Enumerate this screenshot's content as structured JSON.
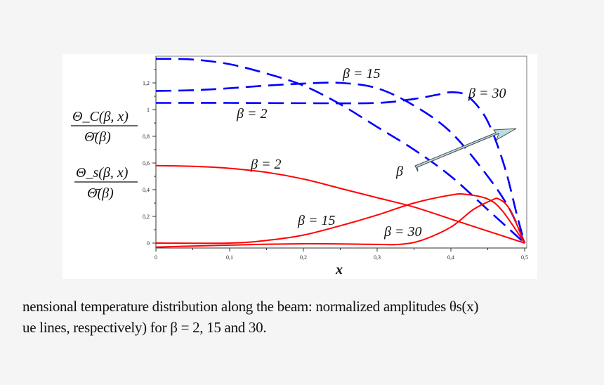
{
  "chart_data": {
    "type": "line",
    "xlabel": "x",
    "ylabel_top": {
      "numerator": "Θ_C(β, x)",
      "denominator": "Θ̄(β)"
    },
    "ylabel_bottom": {
      "numerator": "Θ_s(β, x)",
      "denominator": "Θ̄(β)"
    },
    "xlim": [
      0,
      0.5
    ],
    "ylim": [
      -0.035,
      1.39
    ],
    "x_ticks": [
      "0",
      "0,1",
      "0,2",
      "0,3",
      "0,4",
      "0,5"
    ],
    "x_tick_values": [
      0,
      0.1,
      0.2,
      0.3,
      0.4,
      0.5
    ],
    "y_ticks": [
      "0",
      "0,2",
      "0,4",
      "0,6",
      "0,8",
      "1",
      "1,2"
    ],
    "y_tick_values": [
      0,
      0.2,
      0.4,
      0.6,
      0.8,
      1.0,
      1.2
    ],
    "grid": false,
    "series": [
      {
        "group": "Θ_C",
        "beta": "2",
        "color": "#0000ff",
        "dash": true,
        "points": [
          [
            0,
            1.38
          ],
          [
            0.05,
            1.375
          ],
          [
            0.1,
            1.34
          ],
          [
            0.15,
            1.27
          ],
          [
            0.2,
            1.18
          ],
          [
            0.25,
            1.04
          ],
          [
            0.3,
            0.87
          ],
          [
            0.35,
            0.7
          ],
          [
            0.4,
            0.5
          ],
          [
            0.45,
            0.25
          ],
          [
            0.5,
            0
          ]
        ]
      },
      {
        "group": "Θ_C",
        "beta": "15",
        "color": "#0000ff",
        "dash": true,
        "points": [
          [
            0,
            1.14
          ],
          [
            0.05,
            1.145
          ],
          [
            0.1,
            1.16
          ],
          [
            0.15,
            1.18
          ],
          [
            0.2,
            1.195
          ],
          [
            0.25,
            1.2
          ],
          [
            0.3,
            1.16
          ],
          [
            0.35,
            1.03
          ],
          [
            0.4,
            0.83
          ],
          [
            0.45,
            0.5
          ],
          [
            0.48,
            0.25
          ],
          [
            0.5,
            0
          ]
        ]
      },
      {
        "group": "Θ_C",
        "beta": "30",
        "color": "#0000ff",
        "dash": true,
        "points": [
          [
            0,
            1.05
          ],
          [
            0.1,
            1.05
          ],
          [
            0.2,
            1.048
          ],
          [
            0.3,
            1.05
          ],
          [
            0.35,
            1.08
          ],
          [
            0.38,
            1.11
          ],
          [
            0.4,
            1.13
          ],
          [
            0.42,
            1.11
          ],
          [
            0.44,
            1.0
          ],
          [
            0.455,
            0.85
          ],
          [
            0.474,
            0.55
          ],
          [
            0.49,
            0.2
          ],
          [
            0.5,
            0
          ]
        ]
      },
      {
        "group": "Θ_s",
        "beta": "2",
        "color": "#ff0000",
        "dash": false,
        "points": [
          [
            0,
            0.58
          ],
          [
            0.05,
            0.575
          ],
          [
            0.1,
            0.56
          ],
          [
            0.15,
            0.53
          ],
          [
            0.2,
            0.48
          ],
          [
            0.25,
            0.41
          ],
          [
            0.3,
            0.34
          ],
          [
            0.35,
            0.27
          ],
          [
            0.4,
            0.18
          ],
          [
            0.45,
            0.09
          ],
          [
            0.5,
            0
          ]
        ]
      },
      {
        "group": "Θ_s",
        "beta": "15",
        "color": "#ff0000",
        "dash": false,
        "points": [
          [
            0,
            0
          ],
          [
            0.1,
            0.0
          ],
          [
            0.15,
            0.02
          ],
          [
            0.2,
            0.06
          ],
          [
            0.25,
            0.13
          ],
          [
            0.3,
            0.21
          ],
          [
            0.35,
            0.3
          ],
          [
            0.4,
            0.36
          ],
          [
            0.42,
            0.365
          ],
          [
            0.45,
            0.33
          ],
          [
            0.47,
            0.24
          ],
          [
            0.5,
            0
          ]
        ]
      },
      {
        "group": "Θ_s",
        "beta": "30",
        "color": "#ff0000",
        "dash": false,
        "points": [
          [
            0,
            -0.03
          ],
          [
            0.1,
            -0.015
          ],
          [
            0.2,
            -0.005
          ],
          [
            0.3,
            -0.01
          ],
          [
            0.33,
            -0.01
          ],
          [
            0.36,
            0.02
          ],
          [
            0.4,
            0.12
          ],
          [
            0.43,
            0.25
          ],
          [
            0.455,
            0.32
          ],
          [
            0.465,
            0.33
          ],
          [
            0.48,
            0.25
          ],
          [
            0.5,
            0
          ]
        ]
      }
    ],
    "annotations": [
      {
        "text": "β = 15",
        "color": "blue"
      },
      {
        "text": "β = 30",
        "color": "blue"
      },
      {
        "text": "β = 2",
        "color": "blue"
      },
      {
        "text": "β = 2",
        "color": "red"
      },
      {
        "text": "β = 15",
        "color": "red"
      },
      {
        "text": "β = 30",
        "color": "red"
      },
      {
        "text": "β",
        "arrow": "increasing β",
        "arrow_color": "#b9dede"
      }
    ]
  },
  "caption": {
    "line1": "nensional temperature distribution along the beam: normalized amplitudes θs(x)",
    "line2": "ue lines, respectively) for β = 2, 15 and 30."
  }
}
